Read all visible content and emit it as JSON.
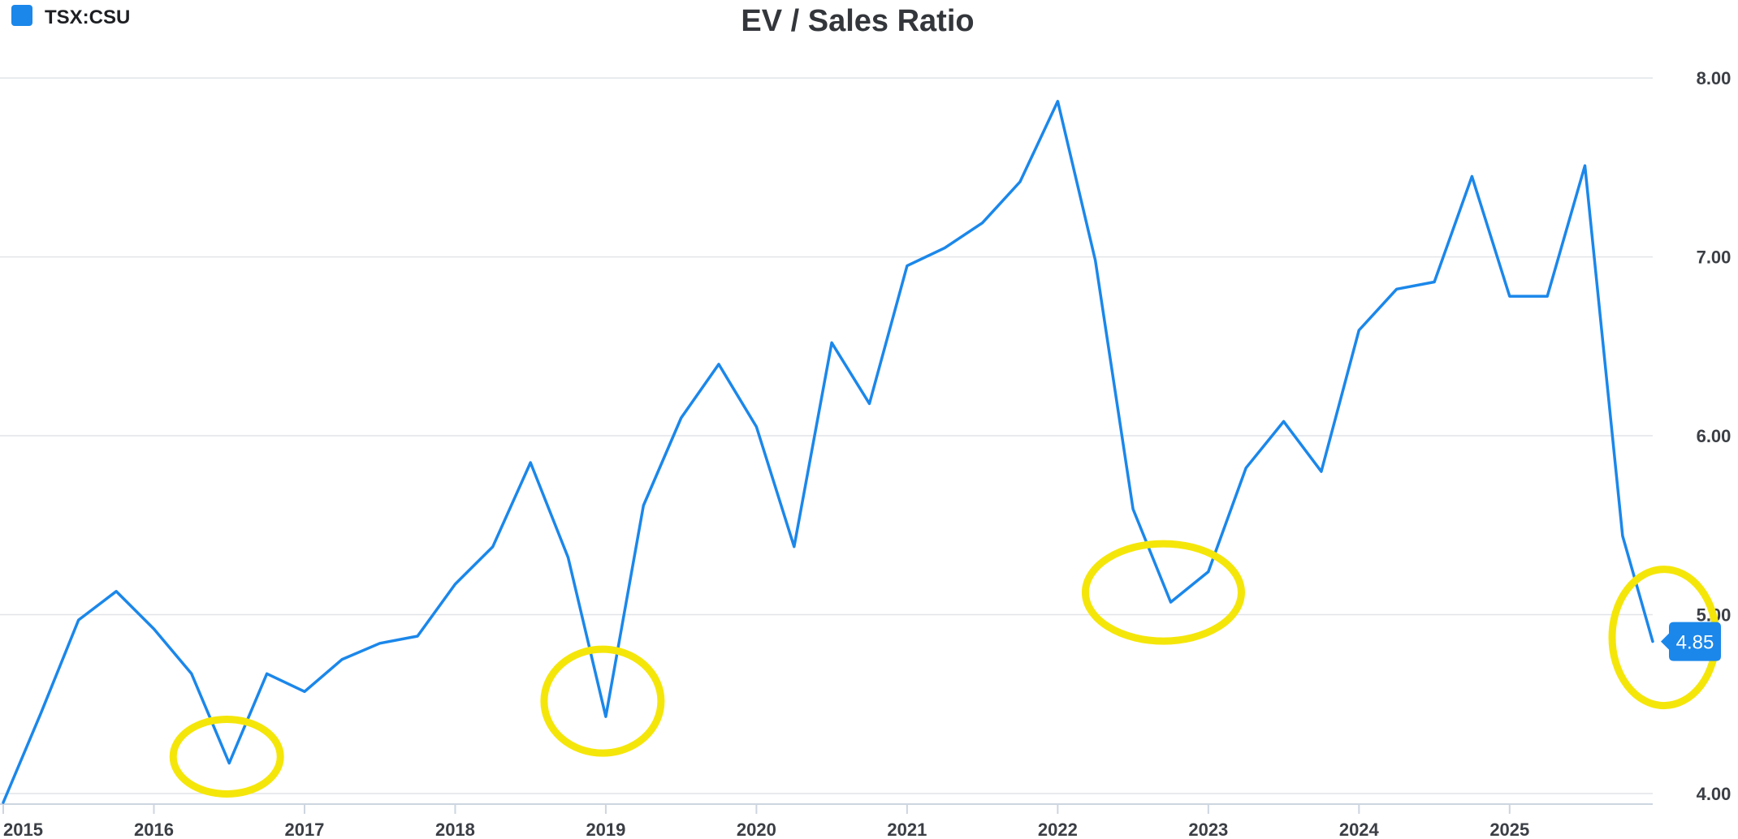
{
  "colors": {
    "series": "#1b87ea",
    "highlight": "#f5e60a",
    "badge": "#1b87ea"
  },
  "chart_data": {
    "type": "line",
    "title": "EV / Sales Ratio",
    "xlabel": "",
    "ylabel": "",
    "legend": {
      "placement": "top-left",
      "entries": [
        "TSX:CSU"
      ]
    },
    "grid": true,
    "xlim": [
      2015.0,
      2025.95
    ],
    "ylim": [
      3.9,
      8.3
    ],
    "x_ticks": [
      2015,
      2016,
      2017,
      2018,
      2019,
      2020,
      2021,
      2022,
      2023,
      2024,
      2025
    ],
    "x_tick_labels": [
      "2015",
      "2016",
      "2017",
      "2018",
      "2019",
      "2020",
      "2021",
      "2022",
      "2023",
      "2024",
      "2025"
    ],
    "y_ticks": [
      4,
      5,
      6,
      7,
      8
    ],
    "y_tick_labels": [
      "4.00",
      "5.00",
      "6.00",
      "7.00",
      "8.00"
    ],
    "series": [
      {
        "name": "TSX:CSU",
        "x": [
          2015.0,
          2015.25,
          2015.5,
          2015.75,
          2016.0,
          2016.25,
          2016.5,
          2016.75,
          2017.0,
          2017.25,
          2017.5,
          2017.75,
          2018.0,
          2018.25,
          2018.5,
          2018.75,
          2019.0,
          2019.25,
          2019.5,
          2019.75,
          2020.0,
          2020.25,
          2020.5,
          2020.75,
          2021.0,
          2021.25,
          2021.5,
          2021.75,
          2022.0,
          2022.25,
          2022.5,
          2022.75,
          2023.0,
          2023.25,
          2023.5,
          2023.75,
          2024.0,
          2024.25,
          2024.5,
          2024.75,
          2025.0,
          2025.25,
          2025.5,
          2025.75,
          2025.95
        ],
        "values": [
          3.95,
          4.45,
          4.97,
          5.13,
          4.92,
          4.67,
          4.17,
          4.67,
          4.57,
          4.75,
          4.84,
          4.88,
          5.17,
          5.38,
          5.85,
          5.32,
          4.43,
          5.61,
          6.1,
          6.4,
          6.05,
          5.38,
          6.52,
          6.18,
          6.95,
          7.05,
          7.19,
          7.42,
          7.87,
          6.98,
          5.59,
          5.07,
          5.24,
          5.82,
          6.08,
          5.8,
          6.59,
          6.82,
          6.86,
          7.45,
          6.78,
          6.78,
          7.51,
          5.44,
          4.85
        ]
      }
    ],
    "annotations": {
      "last_value_label": "4.85",
      "highlighted_x": [
        2016.5,
        2019.0,
        2022.75,
        2025.95
      ]
    }
  }
}
